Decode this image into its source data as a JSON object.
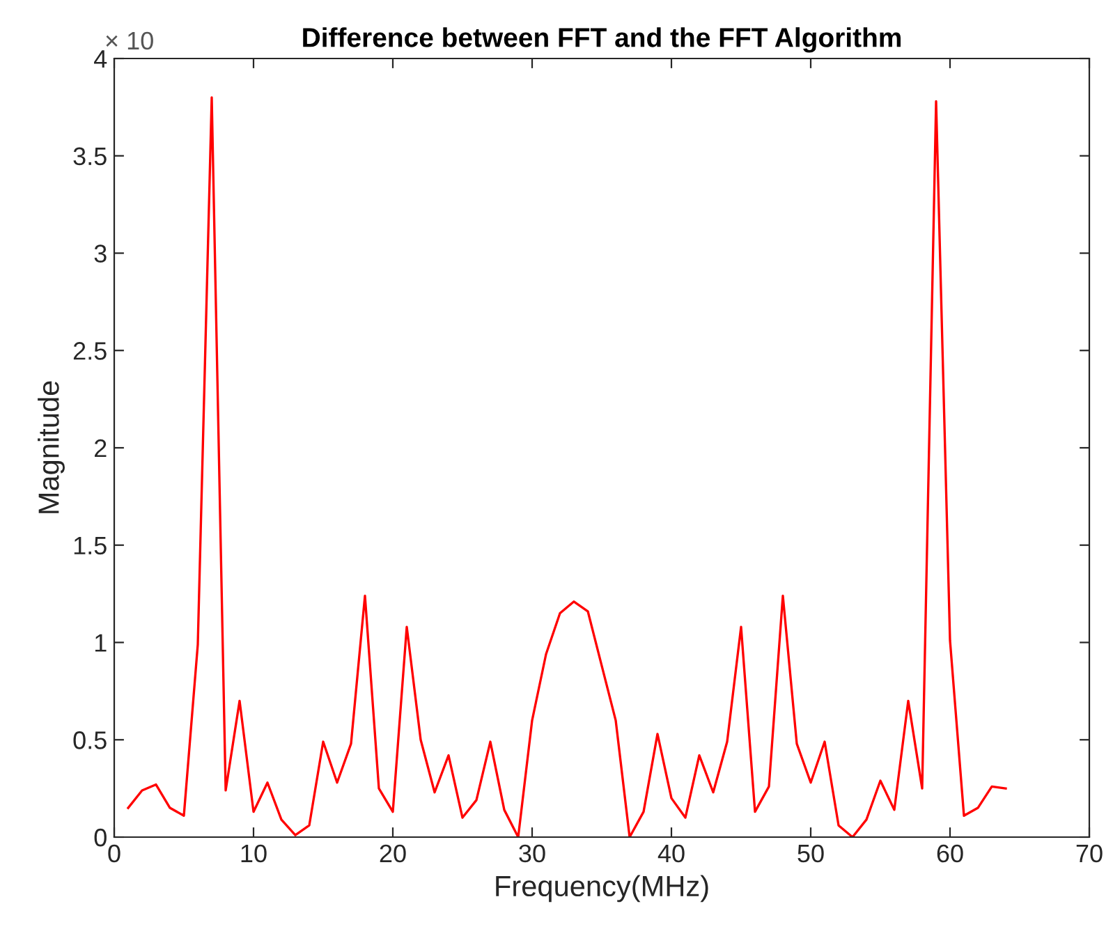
{
  "chart_data": {
    "type": "line",
    "title": "Difference between FFT and the FFT Algorithm",
    "xlabel": "Frequency(MHz)",
    "ylabel": "Magnitude",
    "annotations": [
      "× 10"
    ],
    "x": [
      1,
      2,
      3,
      4,
      5,
      6,
      7,
      8,
      9,
      10,
      11,
      12,
      13,
      14,
      15,
      16,
      17,
      18,
      19,
      20,
      21,
      22,
      23,
      24,
      25,
      26,
      27,
      28,
      29,
      30,
      31,
      32,
      33,
      34,
      35,
      36,
      37,
      38,
      39,
      40,
      41,
      42,
      43,
      44,
      45,
      46,
      47,
      48,
      49,
      50,
      51,
      52,
      53,
      54,
      55,
      56,
      57,
      58,
      59,
      60,
      61,
      62,
      63,
      64
    ],
    "series": [
      {
        "color": "#ff0000",
        "values": [
          0.15,
          0.24,
          0.27,
          0.15,
          0.11,
          0.99,
          3.8,
          0.24,
          0.7,
          0.13,
          0.28,
          0.09,
          0.01,
          0.06,
          0.49,
          0.28,
          0.48,
          1.24,
          0.25,
          0.13,
          1.08,
          0.5,
          0.23,
          0.42,
          0.1,
          0.19,
          0.49,
          0.14,
          0.0,
          0.6,
          0.94,
          1.15,
          1.21,
          1.16,
          0.88,
          0.6,
          0.0,
          0.13,
          0.53,
          0.2,
          0.1,
          0.42,
          0.23,
          0.49,
          1.08,
          0.13,
          0.26,
          1.24,
          0.48,
          0.28,
          0.49,
          0.06,
          0.0,
          0.09,
          0.29,
          0.14,
          0.7,
          0.25,
          3.78,
          1.01,
          0.11,
          0.15,
          0.26,
          0.25
        ]
      }
    ],
    "xlim": [
      0,
      70
    ],
    "xticks": [
      0,
      10,
      20,
      30,
      40,
      50,
      60,
      70
    ],
    "ylim": [
      0,
      4
    ],
    "yticks": [
      0,
      0.5,
      1,
      1.5,
      2,
      2.5,
      3,
      3.5,
      4
    ],
    "grid": false,
    "legend": false,
    "line_style": "solid",
    "marker": "none"
  }
}
